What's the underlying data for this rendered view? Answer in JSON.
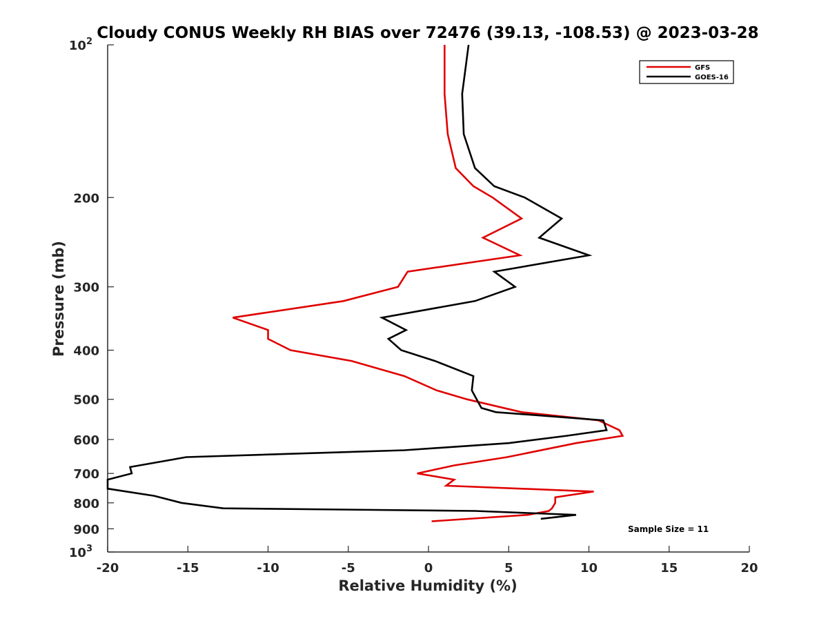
{
  "chart_data": {
    "type": "line",
    "title": "Cloudy CONUS Weekly RH BIAS over 72476 (39.13, -108.53) @ 2023-03-28",
    "xlabel": "Relative Humidity (%)",
    "ylabel": "Pressure (mb)",
    "xlim": [
      -20,
      20
    ],
    "ylim": [
      100,
      1000
    ],
    "y_scale": "log",
    "y_reversed": true,
    "grid": false,
    "legend_position": "top-right",
    "x_ticks": [
      -20,
      -15,
      -10,
      -5,
      0,
      5,
      10,
      15,
      20
    ],
    "y_ticks": [
      {
        "value": 100,
        "base": "10",
        "exp": "2"
      },
      {
        "value": 200,
        "label": "200"
      },
      {
        "value": 300,
        "label": "300"
      },
      {
        "value": 400,
        "label": "400"
      },
      {
        "value": 500,
        "label": "500"
      },
      {
        "value": 600,
        "label": "600"
      },
      {
        "value": 700,
        "label": "700"
      },
      {
        "value": 800,
        "label": "800"
      },
      {
        "value": 900,
        "label": "900"
      },
      {
        "value": 1000,
        "base": "10",
        "exp": "3"
      }
    ],
    "annotation": "Sample Size = 11",
    "series": [
      {
        "name": "GFS",
        "color": "#e00000",
        "points": [
          [
            1.0,
            100
          ],
          [
            1.0,
            125
          ],
          [
            1.2,
            150
          ],
          [
            1.7,
            175
          ],
          [
            2.8,
            190
          ],
          [
            4.0,
            200
          ],
          [
            5.8,
            220
          ],
          [
            3.4,
            240
          ],
          [
            5.7,
            260
          ],
          [
            -1.3,
            280
          ],
          [
            -1.9,
            300
          ],
          [
            -5.3,
            320
          ],
          [
            -12.2,
            345
          ],
          [
            -10.0,
            365
          ],
          [
            -10.0,
            380
          ],
          [
            -8.6,
            400
          ],
          [
            -4.8,
            420
          ],
          [
            -1.5,
            450
          ],
          [
            0.5,
            480
          ],
          [
            2.4,
            500
          ],
          [
            4.7,
            520
          ],
          [
            5.8,
            530
          ],
          [
            10.6,
            550
          ],
          [
            11.9,
            575
          ],
          [
            12.1,
            590
          ],
          [
            9.2,
            610
          ],
          [
            4.9,
            650
          ],
          [
            1.6,
            675
          ],
          [
            -0.7,
            700
          ],
          [
            1.6,
            720
          ],
          [
            1.1,
            740
          ],
          [
            10.3,
            760
          ],
          [
            7.9,
            780
          ],
          [
            7.9,
            800
          ],
          [
            7.7,
            820
          ],
          [
            7.5,
            830
          ],
          [
            6.2,
            845
          ],
          [
            0.2,
            870
          ]
        ]
      },
      {
        "name": "GOES-16",
        "color": "#000000",
        "points": [
          [
            2.5,
            100
          ],
          [
            2.1,
            125
          ],
          [
            2.2,
            150
          ],
          [
            2.9,
            175
          ],
          [
            4.1,
            190
          ],
          [
            6.0,
            200
          ],
          [
            8.3,
            220
          ],
          [
            6.9,
            240
          ],
          [
            10.0,
            260
          ],
          [
            4.1,
            280
          ],
          [
            5.4,
            300
          ],
          [
            2.9,
            320
          ],
          [
            -2.9,
            345
          ],
          [
            -1.4,
            365
          ],
          [
            -2.5,
            380
          ],
          [
            -1.7,
            400
          ],
          [
            0.4,
            420
          ],
          [
            2.8,
            450
          ],
          [
            2.7,
            480
          ],
          [
            3.0,
            500
          ],
          [
            3.3,
            520
          ],
          [
            4.2,
            530
          ],
          [
            10.9,
            550
          ],
          [
            11.1,
            575
          ],
          [
            8.6,
            590
          ],
          [
            5.0,
            610
          ],
          [
            -1.5,
            630
          ],
          [
            -15.1,
            650
          ],
          [
            -18.6,
            680
          ],
          [
            -18.5,
            700
          ],
          [
            -20.0,
            720
          ],
          [
            -20.0,
            750
          ],
          [
            -17.1,
            775
          ],
          [
            -15.4,
            800
          ],
          [
            -12.8,
            820
          ],
          [
            2.9,
            830
          ],
          [
            9.2,
            845
          ],
          [
            7.0,
            860
          ]
        ]
      }
    ]
  }
}
